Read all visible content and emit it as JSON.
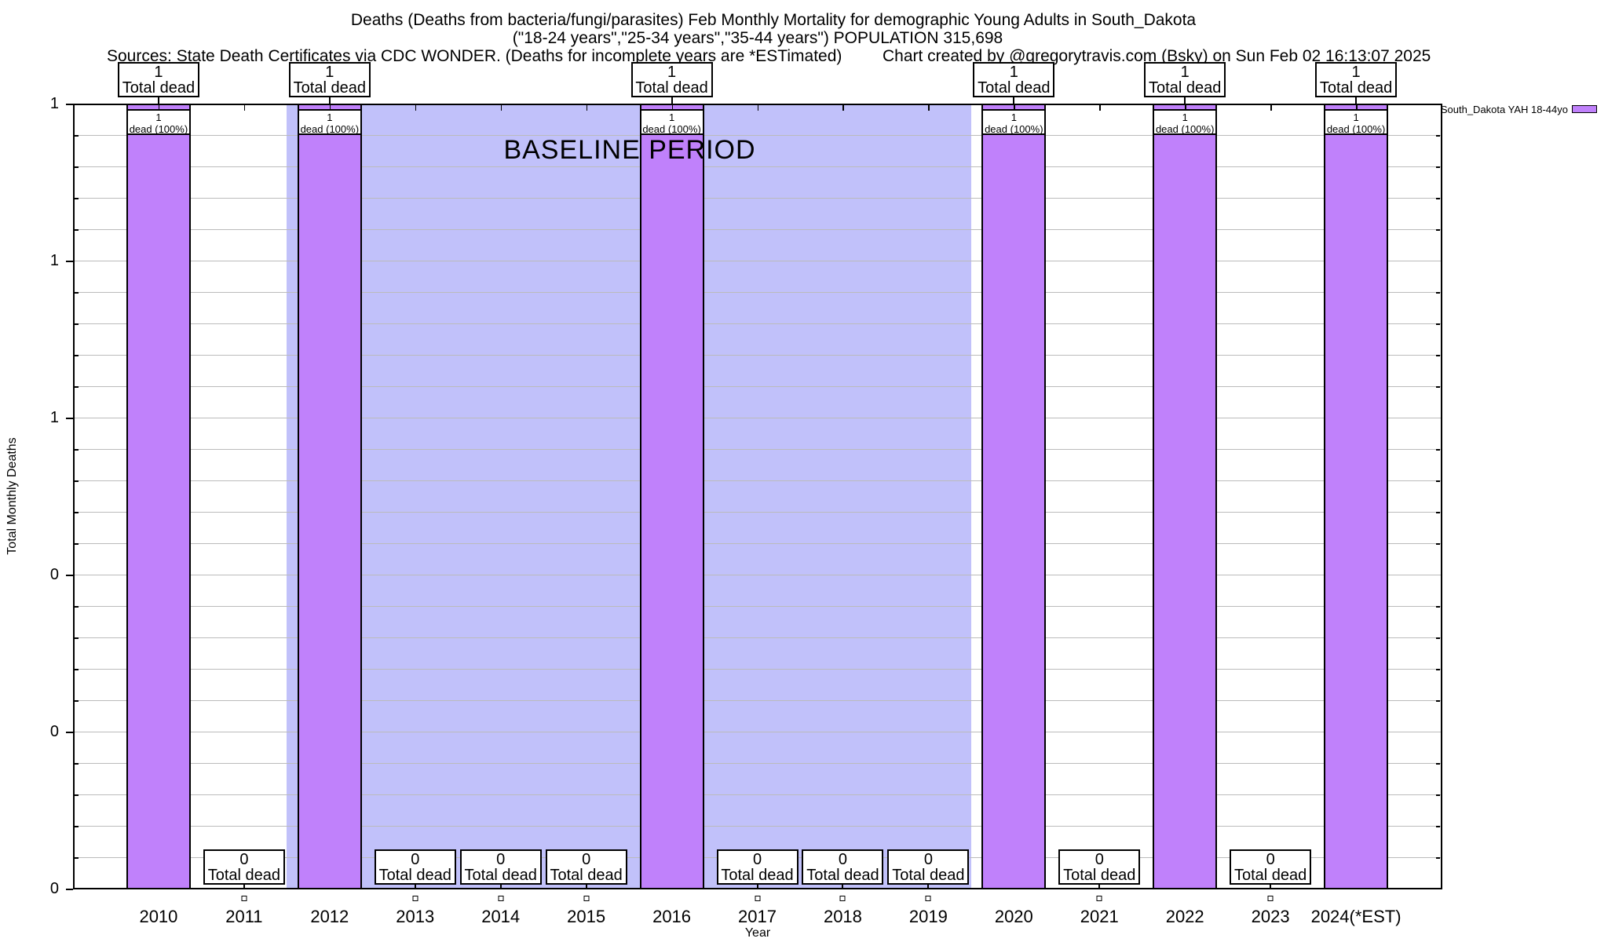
{
  "title": {
    "line1": "Deaths (Deaths from bacteria/fungi/parasites) Feb Monthly Mortality for demographic Young Adults in South_Dakota",
    "line2": "(\"18-24 years\",\"25-34 years\",\"35-44 years\") POPULATION 315,698",
    "sources": "Sources: State Death Certificates via CDC WONDER. (Deaths for incomplete years are *ESTimated)",
    "credit": "Chart created by @gregorytravis.com (Bsky) on Sun Feb 02 16:13:07 2025"
  },
  "legend": {
    "label": "South_Dakota YAH 18-44yo"
  },
  "axes": {
    "xlabel": "Year",
    "ylabel": "Total Monthly Deaths",
    "ytick_labels_top_to_bottom": [
      "1",
      "1",
      "1",
      "0",
      "0",
      "0"
    ]
  },
  "baseline": {
    "label": "BASELINE PERIOD",
    "start_year": 2011.5,
    "end_year": 2019.5
  },
  "colors": {
    "bar_fill": "#c081fb",
    "bar_border": "#000000",
    "baseline_band": "#c1c1fa",
    "gridline": "#bbbbbb",
    "label_box_bg": "#ffffff"
  },
  "chart_data": {
    "type": "bar",
    "title": "Deaths (Deaths from bacteria/fungi/parasites) Feb Monthly Mortality for demographic Young Adults in South_Dakota (\"18-24 years\",\"25-34 years\",\"35-44 years\") POPULATION 315,698",
    "categories": [
      "2010",
      "2011",
      "2012",
      "2013",
      "2014",
      "2015",
      "2016",
      "2017",
      "2018",
      "2019",
      "2020",
      "2021",
      "2022",
      "2023",
      "2024(*EST)"
    ],
    "values": [
      1,
      0,
      1,
      0,
      0,
      0,
      1,
      0,
      0,
      0,
      1,
      0,
      1,
      0,
      1
    ],
    "xlabel": "Year",
    "ylabel": "Total Monthly Deaths",
    "ylim": [
      0,
      1
    ],
    "xrange_years": [
      2009,
      2025
    ],
    "ytick_major_step": 0.2,
    "ytick_minor_step": 0.04,
    "grid": true,
    "legend_position": "top-right",
    "series_name": "South_Dakota YAH 18-44yo",
    "annotations": {
      "bar_top_line1": "1",
      "bar_top_line2": "Total dead",
      "bar_inner_line1": "1",
      "bar_inner_line2": "dead (100%)",
      "zero_box_line1": "0",
      "zero_box_line2": "Total dead",
      "baseline_label": "BASELINE PERIOD",
      "baseline_span_years": [
        2011.5,
        2019.5
      ]
    }
  }
}
